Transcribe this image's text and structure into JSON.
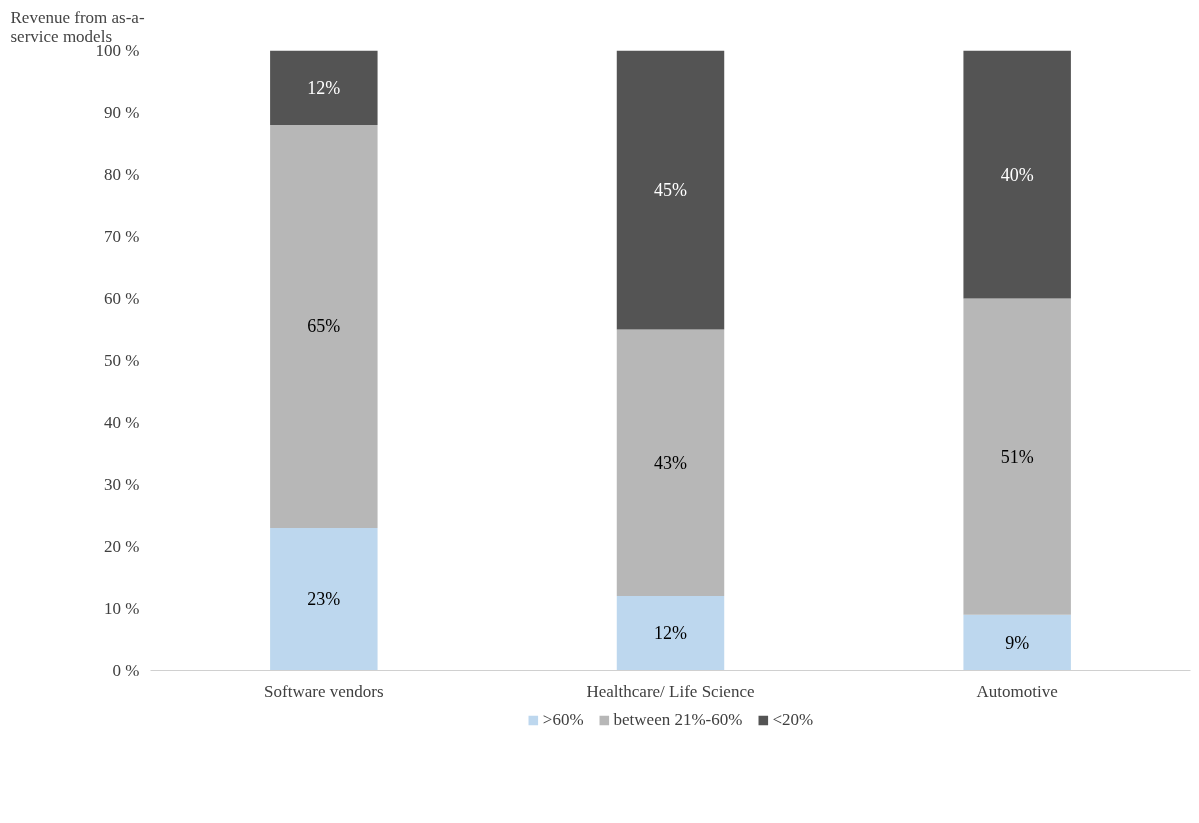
{
  "chart_data": {
    "type": "bar",
    "stacked": true,
    "ylabel": "Revenue from as-a-\nservice models",
    "categories": [
      "Software vendors",
      "Healthcare/ Life Science",
      "Automotive"
    ],
    "series": [
      {
        "name": ">60%",
        "color": "#bdd7ee",
        "values": [
          23,
          12,
          9
        ],
        "value_labels": [
          "23%",
          "12%",
          "9%"
        ]
      },
      {
        "name": "between 21%-60%",
        "color": "#b7b7b7",
        "values": [
          65,
          43,
          51
        ],
        "value_labels": [
          "65%",
          "43%",
          "51%"
        ]
      },
      {
        "name": "<20%",
        "color": "#545454",
        "values": [
          12,
          45,
          40
        ],
        "value_labels": [
          "12%",
          "45%",
          "40%"
        ]
      }
    ],
    "ylim": [
      0,
      100
    ],
    "yticks": [
      {
        "value": 0,
        "label": "0 %"
      },
      {
        "value": 10,
        "label": "10 %"
      },
      {
        "value": 20,
        "label": "20 %"
      },
      {
        "value": 30,
        "label": "30 %"
      },
      {
        "value": 40,
        "label": "40 %"
      },
      {
        "value": 50,
        "label": "50 %"
      },
      {
        "value": 60,
        "label": "60 %"
      },
      {
        "value": 70,
        "label": "70 %"
      },
      {
        "value": 80,
        "label": "80 %"
      },
      {
        "value": 90,
        "label": "90 %"
      },
      {
        "value": 100,
        "label": "100 %"
      }
    ],
    "grid": false,
    "legend": "bottom"
  }
}
